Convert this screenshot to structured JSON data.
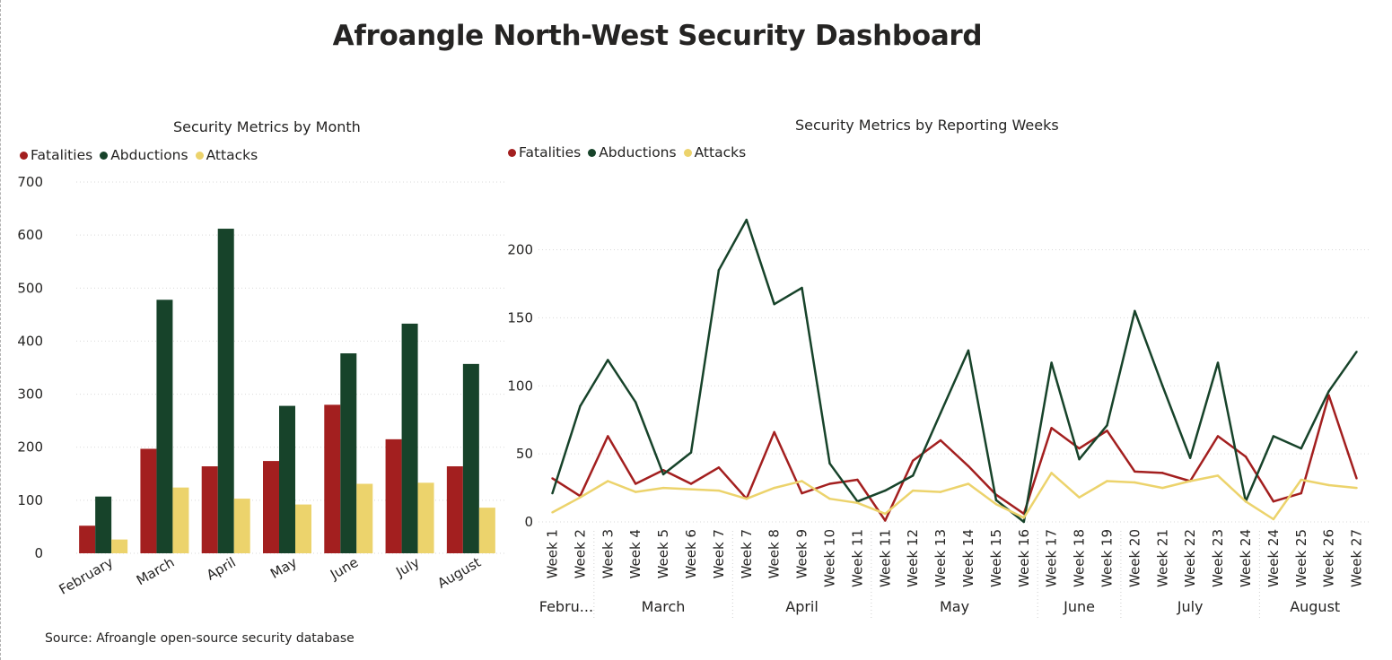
{
  "dashboard": {
    "title": "Afroangle North-West Security Dashboard",
    "source": "Source: Afroangle open-source security database"
  },
  "colors": {
    "fatalities": "#a31f1f",
    "abductions": "#17432a",
    "attacks": "#ecd36c"
  },
  "chart_data": [
    {
      "type": "bar",
      "title": "Security Metrics by Month",
      "categories": [
        "February",
        "March",
        "April",
        "May",
        "June",
        "July",
        "August"
      ],
      "series": [
        {
          "name": "Fatalities",
          "values": [
            52,
            197,
            164,
            174,
            280,
            215,
            164
          ]
        },
        {
          "name": "Abductions",
          "values": [
            107,
            478,
            612,
            278,
            377,
            433,
            357
          ]
        },
        {
          "name": "Attacks",
          "values": [
            26,
            124,
            103,
            92,
            131,
            133,
            86
          ]
        }
      ],
      "ylim": [
        0,
        700
      ],
      "yticks": [
        0,
        100,
        200,
        300,
        400,
        500,
        600,
        700
      ],
      "legend": "top-left",
      "grid": true
    },
    {
      "type": "line",
      "title": "Security Metrics by Reporting Weeks",
      "categories": [
        "Week 1",
        "Week 2",
        "Week 3",
        "Week 4",
        "Week 5",
        "Week 6",
        "Week 7",
        "Week 7",
        "Week 8",
        "Week 9",
        "Week 10",
        "Week 11",
        "Week 11",
        "Week 12",
        "Week 13",
        "Week 14",
        "Week 15",
        "Week 16",
        "Week 17",
        "Week 18",
        "Week 19",
        "Week 20",
        "Week 21",
        "Week 22",
        "Week 23",
        "Week 24",
        "Week 24",
        "Week 25",
        "Week 26",
        "Week 27"
      ],
      "groups": [
        {
          "label": "Febru...",
          "count": 2
        },
        {
          "label": "March",
          "count": 5
        },
        {
          "label": "April",
          "count": 5
        },
        {
          "label": "May",
          "count": 6
        },
        {
          "label": "June",
          "count": 3
        },
        {
          "label": "July",
          "count": 5
        },
        {
          "label": "August",
          "count": 4
        }
      ],
      "series": [
        {
          "name": "Fatalities",
          "values": [
            32,
            19,
            63,
            28,
            38,
            28,
            40,
            17,
            66,
            21,
            28,
            31,
            1,
            45,
            60,
            41,
            20,
            6,
            69,
            54,
            67,
            37,
            36,
            30,
            63,
            48,
            15,
            21,
            93,
            32
          ]
        },
        {
          "name": "Abductions",
          "values": [
            21,
            85,
            119,
            88,
            35,
            51,
            185,
            222,
            160,
            172,
            43,
            15,
            23,
            34,
            80,
            126,
            16,
            0,
            117,
            46,
            71,
            155,
            100,
            47,
            117,
            15,
            63,
            54,
            96,
            125
          ]
        },
        {
          "name": "Attacks",
          "values": [
            7,
            18,
            30,
            22,
            25,
            24,
            23,
            17,
            25,
            30,
            17,
            14,
            6,
            23,
            22,
            28,
            13,
            3,
            36,
            18,
            30,
            29,
            25,
            30,
            34,
            15,
            2,
            31,
            27,
            25
          ]
        }
      ],
      "ylim": [
        0,
        230
      ],
      "yticks": [
        0,
        50,
        100,
        150,
        200
      ],
      "legend": "top-left",
      "grid": true
    }
  ]
}
